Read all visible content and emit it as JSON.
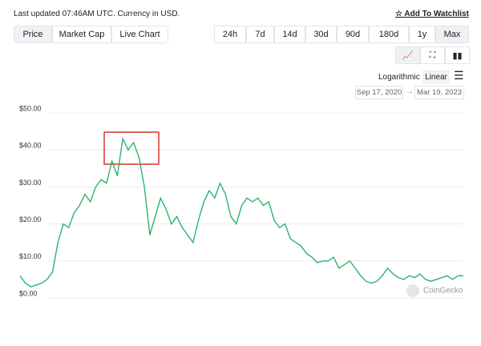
{
  "header": {
    "updated": "Last updated 07:46AM UTC. Currency in USD.",
    "watchlist": "Add To Watchlist"
  },
  "tabs": [
    "Price",
    "Market Cap",
    "Live Chart"
  ],
  "ranges": [
    "24h",
    "7d",
    "14d",
    "30d",
    "90d",
    "180d",
    "1y",
    "Max"
  ],
  "scale_options": [
    "Logarithmic",
    "Linear"
  ],
  "date_range": [
    "Sep 17, 2020",
    "Mar 19, 2023"
  ],
  "watermark": "CoinGecko",
  "chart_data": {
    "type": "line",
    "color": "#2db36b",
    "values": [
      6,
      4,
      3,
      3.5,
      4,
      5,
      7,
      15,
      20,
      19,
      23,
      25,
      28,
      26,
      30,
      32,
      31,
      37,
      33,
      43,
      40,
      42,
      38,
      30,
      17,
      22,
      27,
      24,
      20,
      22,
      19,
      17,
      15,
      21,
      26,
      29,
      27,
      31,
      28,
      22,
      20,
      25,
      27,
      26,
      27,
      25,
      26,
      21,
      19,
      20,
      16,
      15,
      14,
      12,
      11,
      9.5,
      10,
      10,
      11,
      8,
      9,
      10,
      8,
      6,
      4.5,
      4,
      4.5,
      6,
      8,
      6.5,
      5.5,
      5,
      6,
      5.5,
      6.5,
      5,
      4.5,
      5,
      5.5,
      6,
      5,
      6,
      6
    ],
    "ylim": [
      0,
      50
    ],
    "yticks": [
      {
        "value": 0,
        "label": "$0.00"
      },
      {
        "value": 10,
        "label": "$10.00"
      },
      {
        "value": 20,
        "label": "$20.00"
      },
      {
        "value": 30,
        "label": "$30.00"
      },
      {
        "value": 40,
        "label": "$40.00"
      },
      {
        "value": 50,
        "label": "$50.00"
      }
    ],
    "grid": true
  }
}
